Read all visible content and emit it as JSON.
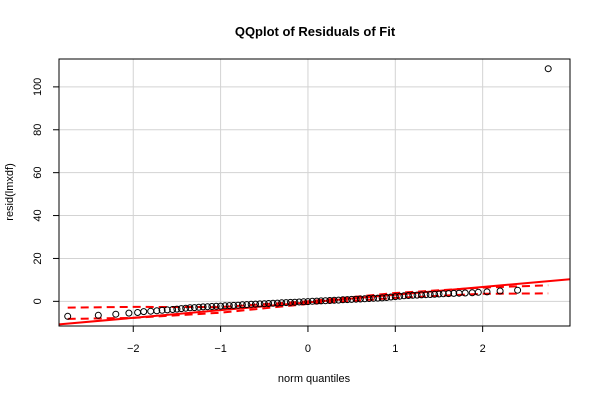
{
  "chart_data": {
    "type": "scatter",
    "title": "QQplot of Residuals of Fit",
    "xlabel": "norm quantiles",
    "ylabel": "resid(lmxdf)",
    "xlim": [
      -2.85,
      3.0
    ],
    "ylim": [
      -11.5,
      113
    ],
    "x_ticks": [
      -2,
      -1,
      0,
      1,
      2
    ],
    "y_ticks": [
      0,
      20,
      40,
      60,
      80,
      100
    ],
    "x_tick_labels": [
      "−2",
      "−1",
      "0",
      "1",
      "2"
    ],
    "y_tick_labels": [
      "0",
      "20",
      "40",
      "60",
      "80",
      "100"
    ],
    "grid": true,
    "colors": {
      "points": "#000000",
      "fit_line": "#ff0000",
      "grid": "#d3d3d3"
    },
    "reference_line": {
      "slope": 3.6,
      "intercept": -0.5
    },
    "confidence_band": {
      "x": [
        -2.75,
        -2.0,
        -1.0,
        0.0,
        1.0,
        2.0,
        2.75
      ],
      "upper": [
        -2.9,
        -2.6,
        -2.7,
        0.0,
        3.9,
        6.4,
        7.5
      ],
      "lower": [
        -8.2,
        -7.7,
        -5.3,
        -1.2,
        1.6,
        3.5,
        3.7
      ]
    },
    "x": [
      -2.75,
      -2.4,
      -2.2,
      -2.05,
      -1.95,
      -1.88,
      -1.8,
      -1.73,
      -1.67,
      -1.61,
      -1.55,
      -1.5,
      -1.45,
      -1.4,
      -1.35,
      -1.3,
      -1.25,
      -1.2,
      -1.15,
      -1.1,
      -1.05,
      -1.0,
      -0.95,
      -0.9,
      -0.85,
      -0.8,
      -0.75,
      -0.7,
      -0.65,
      -0.6,
      -0.55,
      -0.5,
      -0.45,
      -0.4,
      -0.35,
      -0.3,
      -0.25,
      -0.2,
      -0.15,
      -0.1,
      -0.05,
      0.0,
      0.05,
      0.1,
      0.15,
      0.2,
      0.25,
      0.3,
      0.35,
      0.4,
      0.45,
      0.5,
      0.55,
      0.6,
      0.65,
      0.7,
      0.75,
      0.8,
      0.85,
      0.9,
      0.95,
      1.0,
      1.05,
      1.1,
      1.15,
      1.2,
      1.25,
      1.3,
      1.35,
      1.4,
      1.45,
      1.5,
      1.55,
      1.61,
      1.67,
      1.73,
      1.8,
      1.88,
      1.95,
      2.05,
      2.2,
      2.4,
      2.75
    ],
    "y": [
      -7.0,
      -6.5,
      -6.0,
      -5.5,
      -5.2,
      -4.8,
      -4.6,
      -4.4,
      -4.2,
      -4.0,
      -3.8,
      -3.6,
      -3.4,
      -3.2,
      -3.0,
      -2.9,
      -2.8,
      -2.6,
      -2.5,
      -2.4,
      -2.3,
      -2.2,
      -2.1,
      -2.0,
      -1.9,
      -1.8,
      -1.6,
      -1.5,
      -1.4,
      -1.3,
      -1.2,
      -1.1,
      -1.0,
      -0.9,
      -0.8,
      -0.7,
      -0.6,
      -0.5,
      -0.4,
      -0.3,
      -0.2,
      -0.1,
      0.0,
      0.1,
      0.2,
      0.3,
      0.4,
      0.5,
      0.6,
      0.7,
      0.8,
      0.9,
      1.0,
      1.1,
      1.2,
      1.3,
      1.4,
      1.5,
      1.6,
      1.8,
      2.0,
      2.2,
      2.4,
      2.6,
      2.7,
      2.8,
      2.9,
      3.0,
      3.1,
      3.2,
      3.3,
      3.4,
      3.5,
      3.6,
      3.7,
      3.8,
      3.9,
      4.0,
      4.2,
      4.4,
      4.8,
      5.2,
      108.5
    ]
  }
}
